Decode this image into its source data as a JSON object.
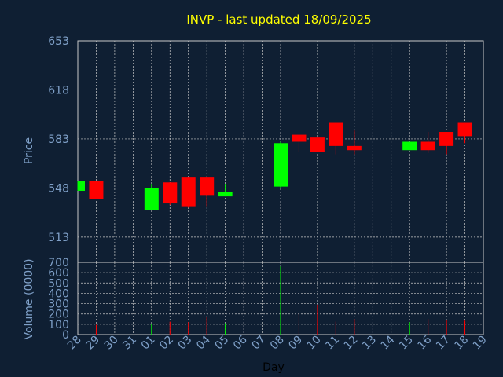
{
  "chart_data": {
    "type": "candlestick",
    "title": "INVP - last updated 18/09/2025",
    "xlabel": "Day",
    "price": {
      "ylabel": "Price",
      "ylim": [
        495,
        653
      ],
      "ticks": [
        653,
        618,
        583,
        548,
        513
      ]
    },
    "volume": {
      "ylabel": "Volume (0000)",
      "ylim": [
        0,
        700
      ],
      "ticks": [
        700,
        600,
        500,
        400,
        300,
        200,
        100,
        0
      ]
    },
    "days": [
      "28",
      "29",
      "30",
      "31",
      "01",
      "02",
      "03",
      "04",
      "05",
      "06",
      "07",
      "08",
      "09",
      "10",
      "11",
      "12",
      "13",
      "14",
      "15",
      "16",
      "17",
      "18",
      "19"
    ],
    "candles": [
      {
        "day": 0,
        "open": 546,
        "close": 553,
        "high": 553,
        "low": 546,
        "volume": 0
      },
      {
        "day": 1,
        "open": 553,
        "close": 540,
        "high": 553,
        "low": 540,
        "volume": 95
      },
      {
        "day": 4,
        "open": 532,
        "close": 548,
        "high": 551,
        "low": 532,
        "volume": 100
      },
      {
        "day": 5,
        "open": 552,
        "close": 537,
        "high": 552,
        "low": 536,
        "volume": 125
      },
      {
        "day": 6,
        "open": 556,
        "close": 535,
        "high": 556,
        "low": 534,
        "volume": 120
      },
      {
        "day": 7,
        "open": 556,
        "close": 543,
        "high": 556,
        "low": 535,
        "volume": 175
      },
      {
        "day": 8,
        "open": 542,
        "close": 545,
        "high": 551,
        "low": 542,
        "volume": 110
      },
      {
        "day": 11,
        "open": 549,
        "close": 580,
        "high": 581,
        "low": 548,
        "volume": 660
      },
      {
        "day": 12,
        "open": 586,
        "close": 581,
        "high": 586,
        "low": 574,
        "volume": 200
      },
      {
        "day": 13,
        "open": 584,
        "close": 574,
        "high": 584,
        "low": 574,
        "volume": 290
      },
      {
        "day": 14,
        "open": 595,
        "close": 578,
        "high": 595,
        "low": 572,
        "volume": 125
      },
      {
        "day": 15,
        "open": 578,
        "close": 575,
        "high": 589,
        "low": 572,
        "volume": 150
      },
      {
        "day": 18,
        "open": 575,
        "close": 581,
        "high": 581,
        "low": 575,
        "volume": 120
      },
      {
        "day": 19,
        "open": 581,
        "close": 575,
        "high": 588,
        "low": 573,
        "volume": 150
      },
      {
        "day": 20,
        "open": 588,
        "close": 578,
        "high": 588,
        "low": 572,
        "volume": 140
      },
      {
        "day": 21,
        "open": 595,
        "close": 585,
        "high": 595,
        "low": 580,
        "volume": 135
      }
    ],
    "colors": {
      "background": "#0f1f33",
      "grid": "#c8c8c8",
      "frame": "#c8c8c8",
      "up": "#00ff00",
      "down": "#ff0000",
      "title": "#ffff00",
      "axis_text": "#7fa0c8",
      "xlabel": "#000000"
    }
  }
}
